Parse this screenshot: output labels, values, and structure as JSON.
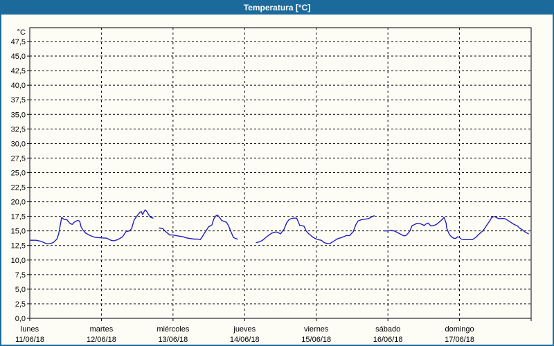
{
  "window": {
    "title": "Temperatura [°C]",
    "title_bar_color": "#1c6a9c",
    "border_color": "#1c6a9c",
    "background_color": "#fdfdf6"
  },
  "chart_data": {
    "type": "line",
    "title": "Temperatura [°C]",
    "unit_label": "°C",
    "series_name": "Temperatura",
    "series_color": "#1f1fbf",
    "grid": "dashed-black",
    "legend_position": "none",
    "ylim": [
      0,
      47.5
    ],
    "y_axis": {
      "ticks": [
        {
          "label": "0,0",
          "value": 0
        },
        {
          "label": "2,5",
          "value": 2.5
        },
        {
          "label": "5,0",
          "value": 5
        },
        {
          "label": "7,5",
          "value": 7.5
        },
        {
          "label": "10,0",
          "value": 10
        },
        {
          "label": "12,5",
          "value": 12.5
        },
        {
          "label": "15,0",
          "value": 15
        },
        {
          "label": "17,5",
          "value": 17.5
        },
        {
          "label": "20,0",
          "value": 20
        },
        {
          "label": "22,5",
          "value": 22.5
        },
        {
          "label": "25,0",
          "value": 25
        },
        {
          "label": "27,5",
          "value": 27.5
        },
        {
          "label": "30,0",
          "value": 30
        },
        {
          "label": "32,5",
          "value": 32.5
        },
        {
          "label": "35,0",
          "value": 35
        },
        {
          "label": "37,5",
          "value": 37.5
        },
        {
          "label": "40,0",
          "value": 40
        },
        {
          "label": "42,5",
          "value": 42.5
        },
        {
          "label": "45,0",
          "value": 45
        },
        {
          "label": "47,5",
          "value": 47.5
        }
      ]
    },
    "x_axis": {
      "unit": "hours-from-start",
      "total_hours": 168,
      "days": [
        {
          "name": "lunes",
          "date": "11/06/18"
        },
        {
          "name": "martes",
          "date": "12/06/18"
        },
        {
          "name": "miércoles",
          "date": "13/06/18"
        },
        {
          "name": "jueves",
          "date": "14/06/18"
        },
        {
          "name": "viernes",
          "date": "15/06/18"
        },
        {
          "name": "sábado",
          "date": "16/06/18"
        },
        {
          "name": "domingo",
          "date": "17/06/18"
        }
      ]
    },
    "segments": [
      [
        [
          0,
          13.4
        ],
        [
          2.1,
          13.4
        ],
        [
          3.9,
          13.2
        ],
        [
          5.6,
          12.8
        ],
        [
          6.7,
          12.8
        ],
        [
          7.9,
          13.0
        ],
        [
          9.1,
          13.6
        ],
        [
          9.7,
          14.5
        ],
        [
          10.2,
          16.0
        ],
        [
          10.7,
          17.3
        ],
        [
          11.4,
          17.0
        ],
        [
          12.5,
          16.9
        ],
        [
          13.2,
          16.4
        ],
        [
          14.2,
          16.1
        ],
        [
          14.9,
          16.5
        ],
        [
          16.0,
          16.8
        ],
        [
          16.7,
          16.7
        ],
        [
          17.2,
          15.7
        ],
        [
          17.9,
          15.1
        ],
        [
          18.8,
          14.6
        ],
        [
          20.2,
          14.2
        ],
        [
          21.8,
          13.9
        ],
        [
          24.1,
          13.8
        ],
        [
          25.8,
          13.75
        ],
        [
          27.2,
          13.4
        ],
        [
          28.1,
          13.3
        ],
        [
          29.5,
          13.5
        ],
        [
          31.1,
          14.0
        ],
        [
          32.3,
          14.9
        ],
        [
          33.4,
          15.0
        ],
        [
          34.1,
          15.4
        ],
        [
          35.0,
          16.9
        ],
        [
          36.0,
          17.6
        ],
        [
          36.9,
          18.2
        ],
        [
          37.4,
          18.3
        ],
        [
          37.8,
          17.8
        ],
        [
          38.5,
          18.5
        ],
        [
          38.8,
          18.6
        ],
        [
          39.5,
          18.1
        ],
        [
          40.2,
          17.5
        ],
        [
          40.6,
          17.3
        ],
        [
          41.3,
          17.2
        ]
      ],
      [
        [
          43.4,
          15.5
        ],
        [
          44.6,
          15.4
        ],
        [
          45.3,
          15.0
        ],
        [
          46.2,
          14.6
        ],
        [
          46.9,
          14.3
        ],
        [
          47.8,
          14.3
        ],
        [
          49.0,
          14.2
        ],
        [
          50.1,
          14.1
        ],
        [
          51.3,
          14.0
        ],
        [
          52.5,
          13.8
        ],
        [
          53.6,
          13.7
        ],
        [
          55.0,
          13.6
        ],
        [
          56.2,
          13.6
        ],
        [
          57.1,
          13.5
        ],
        [
          57.8,
          14.0
        ],
        [
          58.5,
          14.6
        ],
        [
          59.2,
          15.1
        ],
        [
          59.9,
          15.7
        ],
        [
          60.6,
          15.9
        ],
        [
          61.0,
          16.0
        ],
        [
          61.7,
          17.1
        ],
        [
          62.4,
          17.6
        ],
        [
          62.9,
          17.7
        ],
        [
          63.6,
          17.3
        ],
        [
          64.3,
          16.8
        ],
        [
          65.2,
          16.6
        ],
        [
          65.9,
          16.5
        ],
        [
          66.6,
          15.9
        ],
        [
          67.3,
          15.0
        ],
        [
          67.8,
          14.4
        ],
        [
          68.2,
          13.9
        ],
        [
          68.9,
          13.7
        ],
        [
          69.6,
          13.6
        ]
      ],
      [
        [
          75.9,
          13.0
        ],
        [
          76.8,
          13.1
        ],
        [
          78.0,
          13.4
        ],
        [
          79.4,
          14.0
        ],
        [
          81.0,
          14.6
        ],
        [
          82.2,
          14.8
        ],
        [
          82.9,
          14.8
        ],
        [
          84.0,
          14.5
        ],
        [
          85.2,
          15.3
        ],
        [
          86.1,
          16.4
        ],
        [
          86.8,
          16.9
        ],
        [
          87.5,
          17.1
        ],
        [
          88.4,
          17.2
        ],
        [
          89.4,
          17.2
        ],
        [
          90.1,
          16.4
        ],
        [
          90.5,
          15.9
        ],
        [
          91.2,
          15.9
        ],
        [
          91.9,
          15.8
        ],
        [
          92.6,
          15.0
        ],
        [
          93.3,
          14.6
        ],
        [
          94.2,
          14.2
        ],
        [
          94.9,
          13.9
        ],
        [
          95.6,
          13.7
        ],
        [
          96.6,
          13.5
        ],
        [
          97.7,
          13.4
        ],
        [
          98.6,
          13.0
        ],
        [
          99.6,
          12.85
        ],
        [
          100.5,
          12.8
        ],
        [
          101.4,
          13.1
        ],
        [
          103.1,
          13.65
        ],
        [
          104.7,
          13.9
        ],
        [
          106.1,
          14.2
        ],
        [
          107.2,
          14.2
        ],
        [
          108.4,
          14.9
        ],
        [
          109.3,
          16.1
        ],
        [
          110.0,
          16.7
        ],
        [
          111.2,
          16.95
        ],
        [
          112.3,
          17.0
        ],
        [
          113.5,
          17.1
        ],
        [
          114.7,
          17.45
        ],
        [
          115.4,
          17.6
        ]
      ],
      [
        [
          118.8,
          15.0
        ],
        [
          119.8,
          15.0
        ],
        [
          120.9,
          15.1
        ],
        [
          122.1,
          15.0
        ],
        [
          123.3,
          14.7
        ],
        [
          124.4,
          14.4
        ],
        [
          125.3,
          14.15
        ],
        [
          126.0,
          14.2
        ],
        [
          126.7,
          14.55
        ],
        [
          127.4,
          15.0
        ],
        [
          128.1,
          15.9
        ],
        [
          129.0,
          16.1
        ],
        [
          129.7,
          16.3
        ],
        [
          130.7,
          16.25
        ],
        [
          131.6,
          16.1
        ],
        [
          132.1,
          15.9
        ],
        [
          132.8,
          16.2
        ],
        [
          133.5,
          16.35
        ],
        [
          134.4,
          15.85
        ],
        [
          135.3,
          15.9
        ],
        [
          136.2,
          16.1
        ],
        [
          137.4,
          16.6
        ],
        [
          138.3,
          17.0
        ],
        [
          138.8,
          17.35
        ],
        [
          139.5,
          16.35
        ],
        [
          139.7,
          15.5
        ],
        [
          140.2,
          14.85
        ],
        [
          140.6,
          14.4
        ],
        [
          141.3,
          14.0
        ],
        [
          142.0,
          13.75
        ],
        [
          142.7,
          13.7
        ],
        [
          143.4,
          14.0
        ],
        [
          143.9,
          13.9
        ],
        [
          144.6,
          13.6
        ],
        [
          145.5,
          13.5
        ],
        [
          146.5,
          13.5
        ],
        [
          147.4,
          13.5
        ],
        [
          148.3,
          13.5
        ],
        [
          149.5,
          13.9
        ],
        [
          150.2,
          14.3
        ],
        [
          151.1,
          14.7
        ],
        [
          151.8,
          15.0
        ],
        [
          152.5,
          15.5
        ],
        [
          153.4,
          16.2
        ],
        [
          154.1,
          16.7
        ],
        [
          154.8,
          17.3
        ],
        [
          155.5,
          17.45
        ],
        [
          156.0,
          17.4
        ],
        [
          156.9,
          17.15
        ],
        [
          157.6,
          17.1
        ],
        [
          158.5,
          17.15
        ],
        [
          159.2,
          17.1
        ],
        [
          159.9,
          16.9
        ],
        [
          161.1,
          16.5
        ],
        [
          162.3,
          16.1
        ],
        [
          163.4,
          15.85
        ],
        [
          164.1,
          15.5
        ],
        [
          165.0,
          15.2
        ],
        [
          165.7,
          14.9
        ],
        [
          166.4,
          14.7
        ],
        [
          167.1,
          14.5
        ]
      ]
    ]
  }
}
